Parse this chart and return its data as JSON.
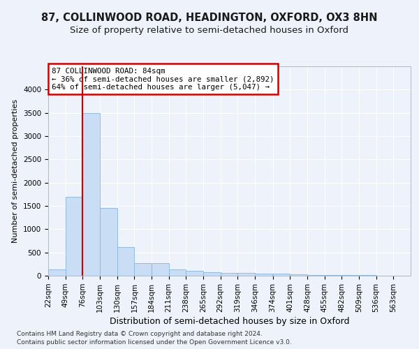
{
  "title1": "87, COLLINWOOD ROAD, HEADINGTON, OXFORD, OX3 8HN",
  "title2": "Size of property relative to semi-detached houses in Oxford",
  "xlabel": "Distribution of semi-detached houses by size in Oxford",
  "ylabel": "Number of semi-detached properties",
  "footer1": "Contains HM Land Registry data © Crown copyright and database right 2024.",
  "footer2": "Contains public sector information licensed under the Open Government Licence v3.0.",
  "annotation_line1": "87 COLLINWOOD ROAD: 84sqm",
  "annotation_line2": "← 36% of semi-detached houses are smaller (2,892)",
  "annotation_line3": "64% of semi-detached houses are larger (5,047) →",
  "categories": [
    "22sqm",
    "49sqm",
    "76sqm",
    "103sqm",
    "130sqm",
    "157sqm",
    "184sqm",
    "211sqm",
    "238sqm",
    "265sqm",
    "292sqm",
    "319sqm",
    "346sqm",
    "374sqm",
    "401sqm",
    "428sqm",
    "455sqm",
    "482sqm",
    "509sqm",
    "536sqm",
    "563sqm"
  ],
  "bin_starts": [
    22,
    49,
    76,
    103,
    130,
    157,
    184,
    211,
    238,
    265,
    292,
    319,
    346,
    374,
    401,
    428,
    455,
    482,
    509,
    536,
    563
  ],
  "values": [
    130,
    1700,
    3500,
    1450,
    620,
    265,
    265,
    130,
    100,
    80,
    65,
    60,
    50,
    40,
    30,
    20,
    15,
    12,
    8,
    6,
    4
  ],
  "bar_color": "#c9ddf5",
  "bar_edge_color": "#8ab4d8",
  "redline_color": "#cc0000",
  "redline_x": 76,
  "ylim_max": 4500,
  "yticks": [
    0,
    500,
    1000,
    1500,
    2000,
    2500,
    3000,
    3500,
    4000
  ],
  "bg_color": "#edf2fb",
  "grid_color": "#ffffff",
  "annotation_box_facecolor": "#ffffff",
  "annotation_box_edgecolor": "#cc0000",
  "title_fontsize": 10.5,
  "subtitle_fontsize": 9.5,
  "ylabel_fontsize": 8,
  "xlabel_fontsize": 9,
  "tick_fontsize": 7.5,
  "footer_fontsize": 6.5
}
